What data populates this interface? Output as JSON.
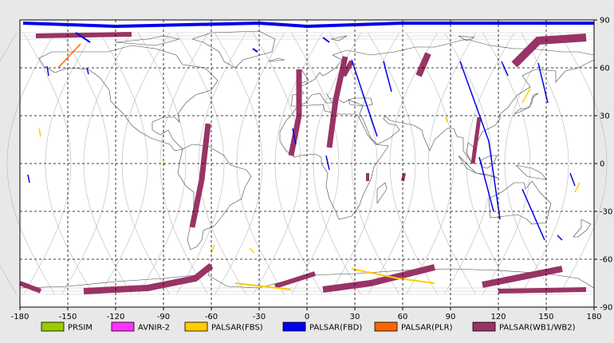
{
  "map": {
    "lon_ticks": [
      "-180",
      "-150",
      "-120",
      "-90",
      "-60",
      "-30",
      "0",
      "30",
      "60",
      "90",
      "120",
      "150",
      "180"
    ],
    "lat_ticks_right": [
      "90",
      "60",
      "30",
      "0",
      "-30",
      "-60",
      "-90"
    ],
    "lon_range": [
      -180,
      180
    ],
    "lat_range": [
      -90,
      90
    ],
    "projection": "equirectangular",
    "grid": "dashed every 30 degrees"
  },
  "legend": [
    {
      "label": "PRSIM",
      "color": "#99cc00"
    },
    {
      "label": "AVNIR-2",
      "color": "#ff33ff"
    },
    {
      "label": "PALSAR(FBS)",
      "color": "#ffcc00"
    },
    {
      "label": "PALSAR(FBD)",
      "color": "#0000ee"
    },
    {
      "label": "PALSAR(PLR)",
      "color": "#ff6600"
    },
    {
      "label": "PALSAR(WB1/WB2)",
      "color": "#993366"
    }
  ]
}
